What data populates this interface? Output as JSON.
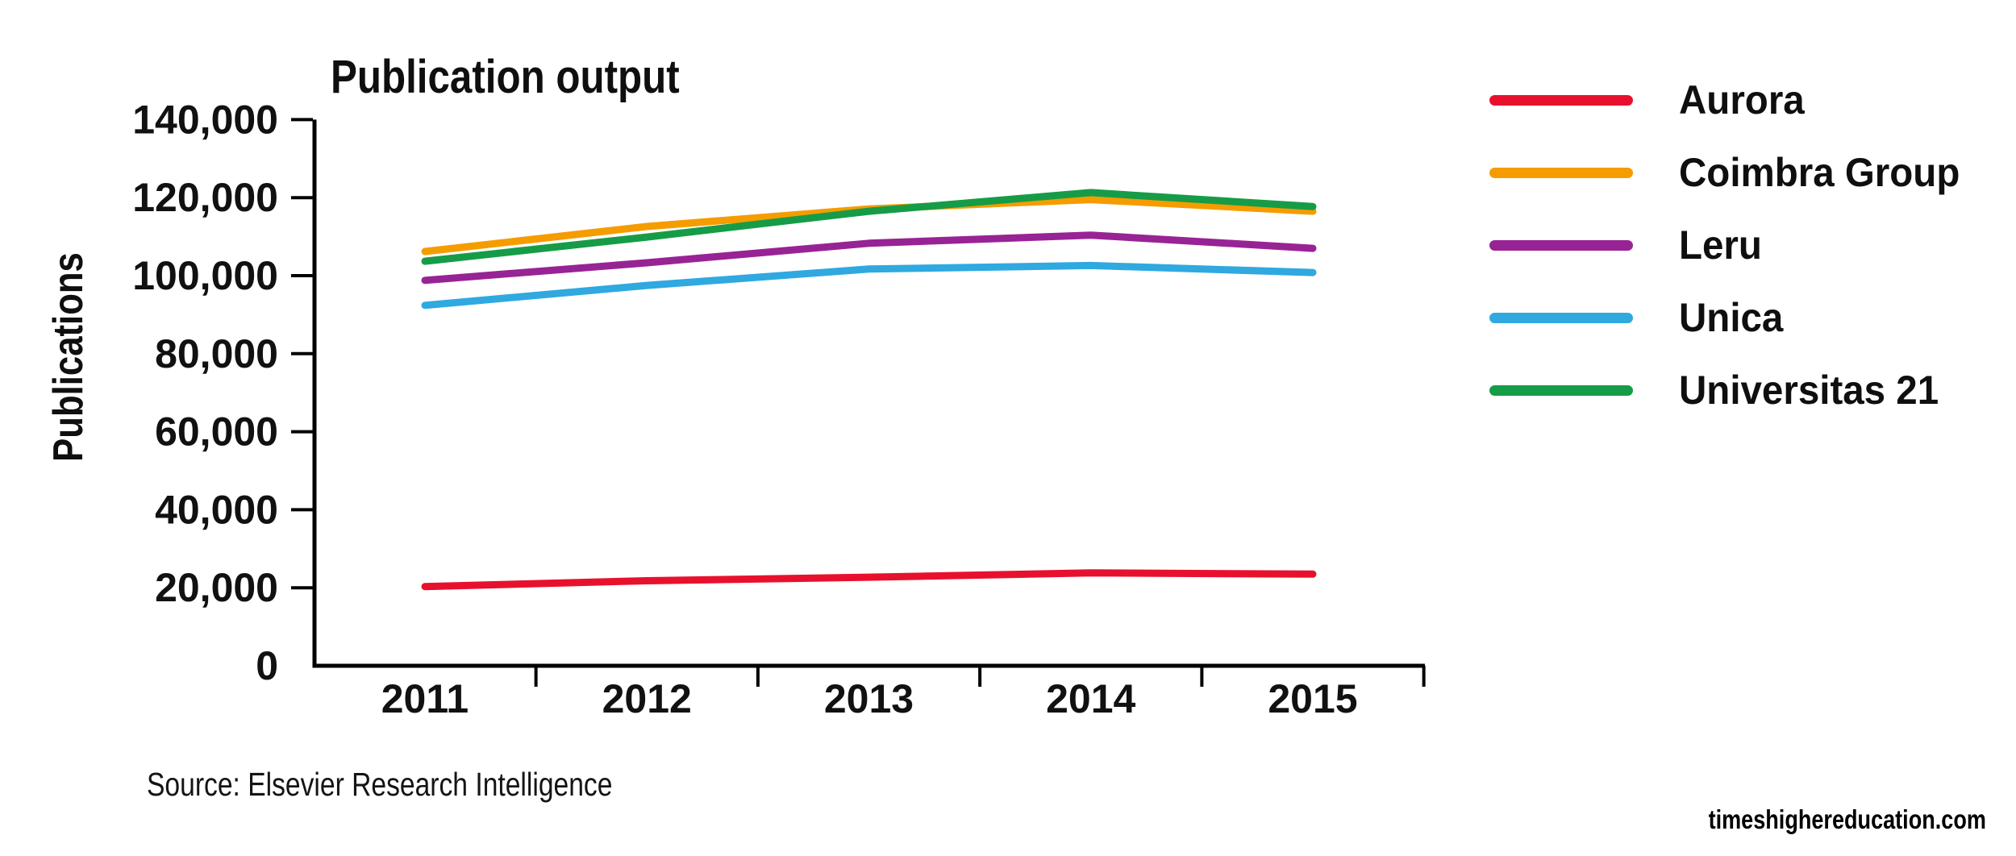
{
  "chart_data": {
    "type": "line",
    "title": "Publication output",
    "xlabel": "",
    "ylabel": "Publications",
    "categories": [
      "2011",
      "2012",
      "2013",
      "2014",
      "2015"
    ],
    "ylim": [
      0,
      140000
    ],
    "grid": false,
    "legend_position": "right",
    "yticks": [
      {
        "value": 0,
        "label": "0"
      },
      {
        "value": 20000,
        "label": "20,000"
      },
      {
        "value": 40000,
        "label": "40,000"
      },
      {
        "value": 60000,
        "label": "60,000"
      },
      {
        "value": 80000,
        "label": "80,000"
      },
      {
        "value": 100000,
        "label": "100,000"
      },
      {
        "value": 120000,
        "label": "120,000"
      },
      {
        "value": 140000,
        "label": "140,000"
      }
    ],
    "series": [
      {
        "name": "Aurora",
        "color": "#e8112d",
        "values": [
          20300,
          21800,
          22700,
          23800,
          23500
        ]
      },
      {
        "name": "Coimbra Group",
        "color": "#f59c00",
        "values": [
          106200,
          112600,
          117100,
          119500,
          116500
        ]
      },
      {
        "name": "Leru",
        "color": "#982395",
        "values": [
          98800,
          103300,
          108300,
          110400,
          107000
        ]
      },
      {
        "name": "Unica",
        "color": "#2fa9e0",
        "values": [
          92400,
          97500,
          101700,
          102600,
          100800
        ]
      },
      {
        "name": "Universitas 21",
        "color": "#169c47",
        "values": [
          103700,
          109900,
          116500,
          121300,
          117700
        ]
      }
    ]
  },
  "footer": {
    "source": "Source: Elsevier Research Intelligence",
    "watermark": "timeshighereducation.com"
  },
  "axis_color": "#000000",
  "text_color": "#111111"
}
